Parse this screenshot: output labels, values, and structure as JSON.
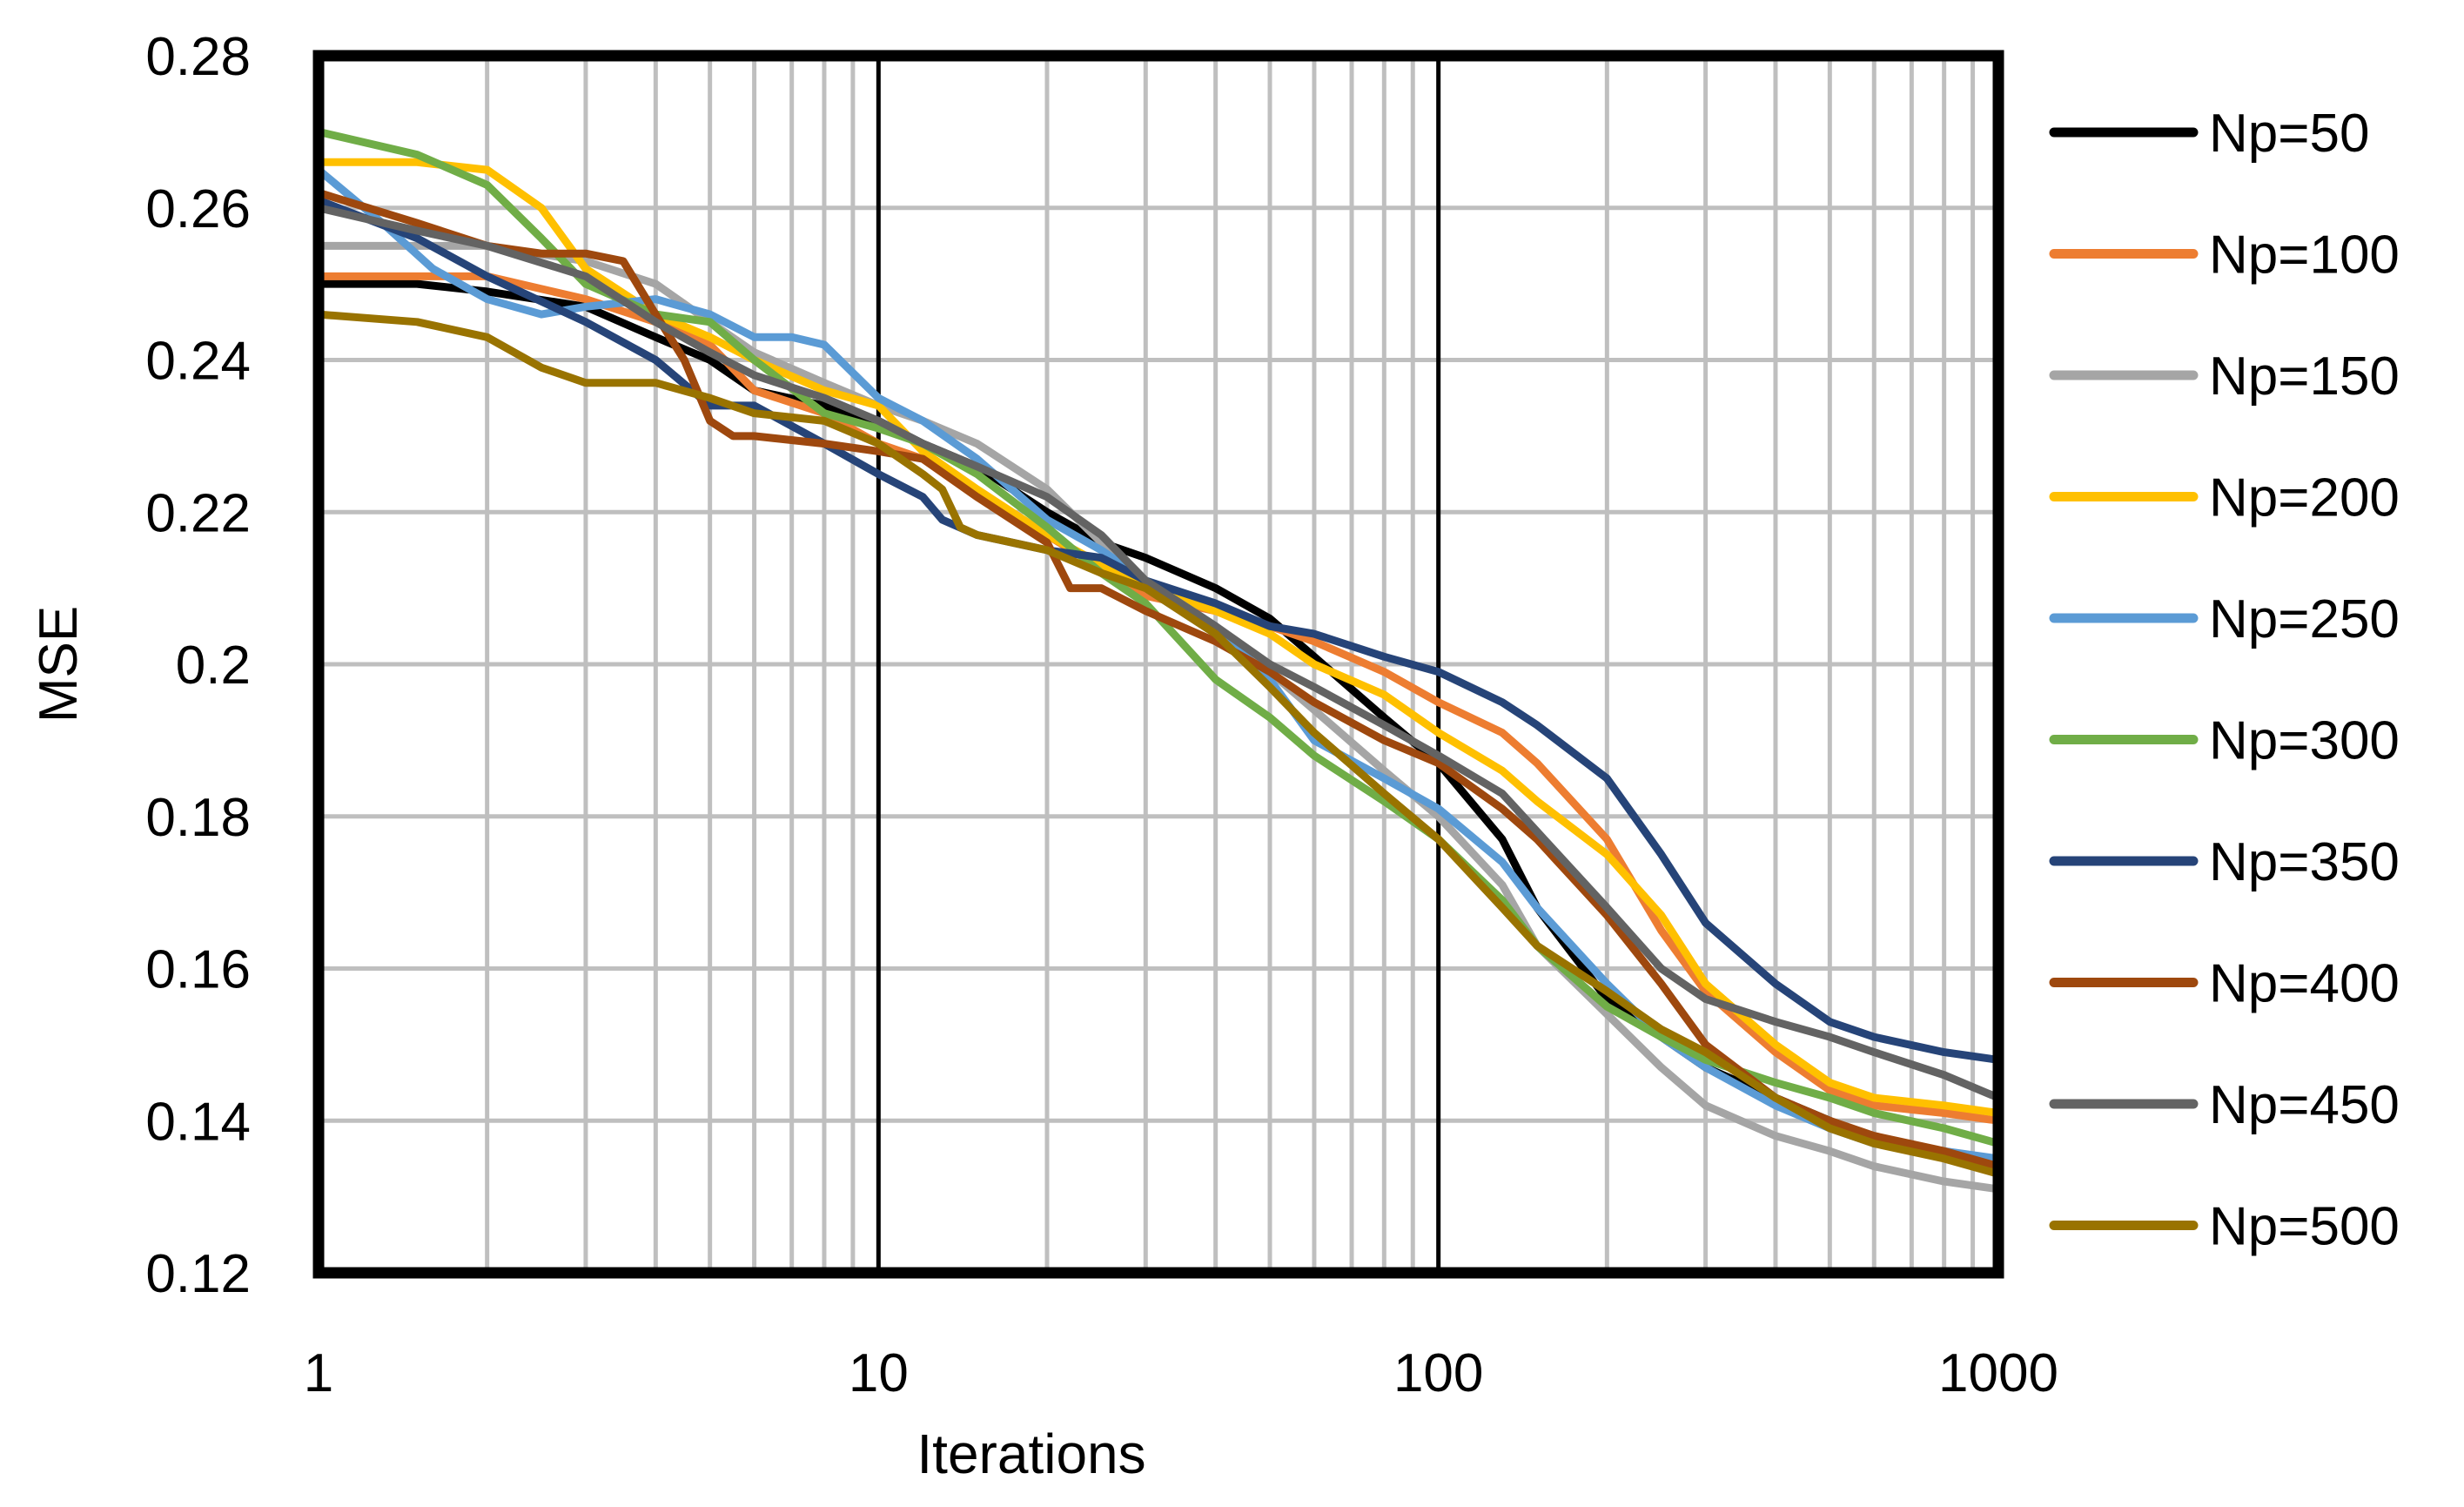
{
  "chart_data": {
    "type": "line",
    "xscale": "log",
    "xlabel": "Iterations",
    "ylabel": "MSE",
    "xlim": [
      1,
      1000
    ],
    "ylim": [
      0.12,
      0.28
    ],
    "xticks": [
      1,
      10,
      100,
      1000
    ],
    "xtick_labels": [
      "1",
      "10",
      "100",
      "1000"
    ],
    "yticks": [
      0.12,
      0.14,
      0.16,
      0.18,
      0.2,
      0.22,
      0.24,
      0.26,
      0.28
    ],
    "ytick_labels": [
      "0.12",
      "0.14",
      "0.16",
      "0.18",
      "0.2",
      "0.22",
      "0.24",
      "0.26",
      "0.28"
    ],
    "grid": true,
    "legend_position": "right",
    "series": [
      {
        "name": "Np=50",
        "color": "#000000",
        "x": [
          1,
          1.5,
          2,
          3,
          4,
          5,
          6,
          8,
          10,
          12,
          15,
          20,
          25,
          30,
          40,
          50,
          60,
          80,
          100,
          130,
          150,
          200,
          250,
          300,
          400,
          500,
          600
        ],
        "y": [
          0.25,
          0.25,
          0.249,
          0.247,
          0.243,
          0.24,
          0.236,
          0.234,
          0.232,
          0.229,
          0.226,
          0.22,
          0.216,
          0.214,
          0.21,
          0.206,
          0.201,
          0.193,
          0.187,
          0.177,
          0.168,
          0.156,
          0.151,
          0.147,
          0.143,
          0.14,
          0.137
        ]
      },
      {
        "name": "Np=100",
        "color": "#ED7D31",
        "x": [
          1,
          1.5,
          2,
          3,
          4,
          5,
          6,
          8,
          10,
          12,
          15,
          20,
          30,
          40,
          50,
          60,
          80,
          100,
          130,
          150,
          200,
          250,
          300,
          400,
          500,
          600,
          800,
          1000
        ],
        "y": [
          0.251,
          0.251,
          0.251,
          0.248,
          0.245,
          0.242,
          0.236,
          0.233,
          0.229,
          0.227,
          0.222,
          0.217,
          0.209,
          0.207,
          0.205,
          0.203,
          0.199,
          0.195,
          0.191,
          0.187,
          0.177,
          0.165,
          0.157,
          0.149,
          0.144,
          0.142,
          0.141,
          0.14
        ]
      },
      {
        "name": "Np=150",
        "color": "#A5A5A5",
        "x": [
          1,
          1.5,
          2,
          3,
          4,
          5,
          6,
          8,
          10,
          12,
          15,
          20,
          25,
          30,
          40,
          50,
          60,
          80,
          100,
          130,
          150,
          200,
          250,
          300,
          400,
          500,
          600,
          800,
          1000
        ],
        "y": [
          0.255,
          0.255,
          0.255,
          0.253,
          0.25,
          0.245,
          0.241,
          0.237,
          0.234,
          0.232,
          0.229,
          0.223,
          0.216,
          0.21,
          0.204,
          0.199,
          0.194,
          0.186,
          0.18,
          0.171,
          0.163,
          0.154,
          0.147,
          0.142,
          0.138,
          0.136,
          0.134,
          0.132,
          0.131
        ]
      },
      {
        "name": "Np=200",
        "color": "#FFC000",
        "x": [
          1,
          1.5,
          2,
          2.5,
          3,
          4,
          5,
          6,
          8,
          10,
          12,
          15,
          20,
          30,
          40,
          50,
          60,
          80,
          100,
          130,
          150,
          200,
          250,
          300,
          400,
          500,
          600,
          800,
          1000
        ],
        "y": [
          0.266,
          0.266,
          0.265,
          0.26,
          0.252,
          0.246,
          0.243,
          0.24,
          0.236,
          0.234,
          0.228,
          0.223,
          0.217,
          0.21,
          0.207,
          0.204,
          0.2,
          0.196,
          0.191,
          0.186,
          0.182,
          0.175,
          0.167,
          0.158,
          0.15,
          0.145,
          0.143,
          0.142,
          0.141
        ]
      },
      {
        "name": "Np=250",
        "color": "#5B9BD5",
        "x": [
          1,
          1.3,
          1.6,
          2,
          2.5,
          3,
          4,
          5,
          6,
          7,
          8,
          10,
          12,
          15,
          20,
          25,
          30,
          40,
          50,
          60,
          80,
          100,
          130,
          150,
          200,
          250,
          300,
          400,
          500,
          600,
          800,
          1000
        ],
        "y": [
          0.265,
          0.258,
          0.252,
          0.248,
          0.246,
          0.247,
          0.248,
          0.246,
          0.243,
          0.243,
          0.242,
          0.235,
          0.232,
          0.227,
          0.219,
          0.215,
          0.211,
          0.205,
          0.198,
          0.19,
          0.185,
          0.181,
          0.174,
          0.168,
          0.158,
          0.151,
          0.147,
          0.142,
          0.139,
          0.137,
          0.136,
          0.135
        ]
      },
      {
        "name": "Np=300",
        "color": "#70AD47",
        "x": [
          1,
          1.5,
          2,
          2.5,
          3,
          4,
          5,
          6,
          8,
          10,
          12,
          15,
          20,
          25,
          30,
          40,
          50,
          60,
          80,
          100,
          130,
          150,
          200,
          250,
          300,
          400,
          500,
          600,
          800,
          1000
        ],
        "y": [
          0.27,
          0.267,
          0.263,
          0.256,
          0.25,
          0.246,
          0.245,
          0.24,
          0.233,
          0.231,
          0.229,
          0.225,
          0.218,
          0.212,
          0.208,
          0.198,
          0.193,
          0.188,
          0.182,
          0.177,
          0.169,
          0.163,
          0.155,
          0.151,
          0.148,
          0.145,
          0.143,
          0.141,
          0.139,
          0.137
        ]
      },
      {
        "name": "Np=350",
        "color": "#264478",
        "x": [
          1,
          1.5,
          2,
          3,
          4,
          5,
          6,
          8,
          10,
          12,
          13,
          15,
          20,
          25,
          30,
          40,
          50,
          60,
          80,
          100,
          130,
          150,
          200,
          250,
          300,
          400,
          500,
          600,
          800,
          1000
        ],
        "y": [
          0.261,
          0.256,
          0.251,
          0.245,
          0.24,
          0.234,
          0.234,
          0.229,
          0.225,
          0.222,
          0.219,
          0.217,
          0.215,
          0.214,
          0.211,
          0.208,
          0.205,
          0.204,
          0.201,
          0.199,
          0.195,
          0.192,
          0.185,
          0.175,
          0.166,
          0.158,
          0.153,
          0.151,
          0.149,
          0.148
        ]
      },
      {
        "name": "Np=400",
        "color": "#9E480E",
        "x": [
          1,
          1.5,
          2,
          2.5,
          3,
          3.5,
          4,
          4.5,
          5,
          5.5,
          6,
          8,
          10,
          12,
          15,
          20,
          22,
          25,
          30,
          40,
          50,
          60,
          80,
          100,
          130,
          150,
          200,
          250,
          300,
          400,
          500,
          600,
          800,
          1000
        ],
        "y": [
          0.262,
          0.258,
          0.255,
          0.254,
          0.254,
          0.253,
          0.246,
          0.24,
          0.232,
          0.23,
          0.23,
          0.229,
          0.228,
          0.227,
          0.222,
          0.216,
          0.21,
          0.21,
          0.207,
          0.203,
          0.199,
          0.195,
          0.19,
          0.187,
          0.181,
          0.177,
          0.167,
          0.158,
          0.15,
          0.143,
          0.14,
          0.138,
          0.136,
          0.134
        ]
      },
      {
        "name": "Np=450",
        "color": "#636363",
        "x": [
          1,
          1.5,
          2,
          3,
          4,
          5,
          6,
          8,
          10,
          12,
          15,
          20,
          25,
          30,
          40,
          50,
          60,
          80,
          100,
          130,
          150,
          200,
          250,
          300,
          400,
          500,
          600,
          800,
          1000
        ],
        "y": [
          0.26,
          0.257,
          0.255,
          0.251,
          0.245,
          0.241,
          0.238,
          0.235,
          0.232,
          0.229,
          0.226,
          0.222,
          0.217,
          0.211,
          0.205,
          0.2,
          0.197,
          0.192,
          0.188,
          0.183,
          0.178,
          0.168,
          0.16,
          0.156,
          0.153,
          0.151,
          0.149,
          0.146,
          0.143
        ]
      },
      {
        "name": "Np=500",
        "color": "#997300",
        "x": [
          1,
          1.5,
          2,
          2.5,
          3,
          4,
          5,
          6,
          8,
          10,
          12,
          13,
          14,
          15,
          20,
          25,
          30,
          40,
          50,
          60,
          80,
          100,
          130,
          150,
          200,
          250,
          300,
          400,
          500,
          600,
          800,
          1000
        ],
        "y": [
          0.246,
          0.245,
          0.243,
          0.239,
          0.237,
          0.237,
          0.235,
          0.233,
          0.232,
          0.229,
          0.225,
          0.223,
          0.218,
          0.217,
          0.215,
          0.212,
          0.21,
          0.204,
          0.197,
          0.191,
          0.183,
          0.177,
          0.168,
          0.163,
          0.157,
          0.152,
          0.149,
          0.143,
          0.139,
          0.137,
          0.135,
          0.133
        ]
      }
    ]
  }
}
